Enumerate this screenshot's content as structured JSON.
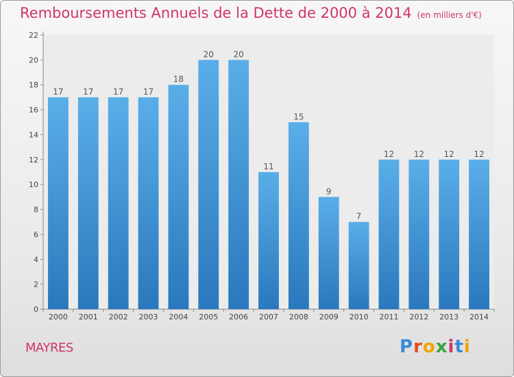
{
  "title": "Remboursements Annuels de la Dette de 2000 à 2014",
  "subtitle": "(en milliers d'€)",
  "commune": "MAYRES",
  "logo": {
    "letters": [
      "P",
      "r",
      "o",
      "x",
      "i",
      "t",
      "i"
    ],
    "colors": [
      "#3b8ad8",
      "#e84a1c",
      "#f2a300",
      "#3aa63a",
      "#d0346b",
      "#3b8ad8",
      "#f2a300"
    ]
  },
  "colors": {
    "bar_top": "#5aaee8",
    "bar_bottom": "#2a78bd",
    "title": "#d0346b"
  },
  "chart_data": {
    "type": "bar",
    "title": "Remboursements Annuels de la Dette de 2000 à 2014",
    "subtitle": "(en milliers d'€)",
    "categories": [
      "2000",
      "2001",
      "2002",
      "2003",
      "2004",
      "2005",
      "2006",
      "2007",
      "2008",
      "2009",
      "2010",
      "2011",
      "2012",
      "2013",
      "2014"
    ],
    "values": [
      17,
      17,
      17,
      17,
      18,
      20,
      20,
      11,
      15,
      9,
      7,
      12,
      12,
      12,
      12
    ],
    "ylim": [
      0,
      22
    ],
    "yticks": [
      0,
      2,
      4,
      6,
      8,
      10,
      12,
      14,
      16,
      18,
      20,
      22
    ],
    "grid": false,
    "legend": "none"
  }
}
